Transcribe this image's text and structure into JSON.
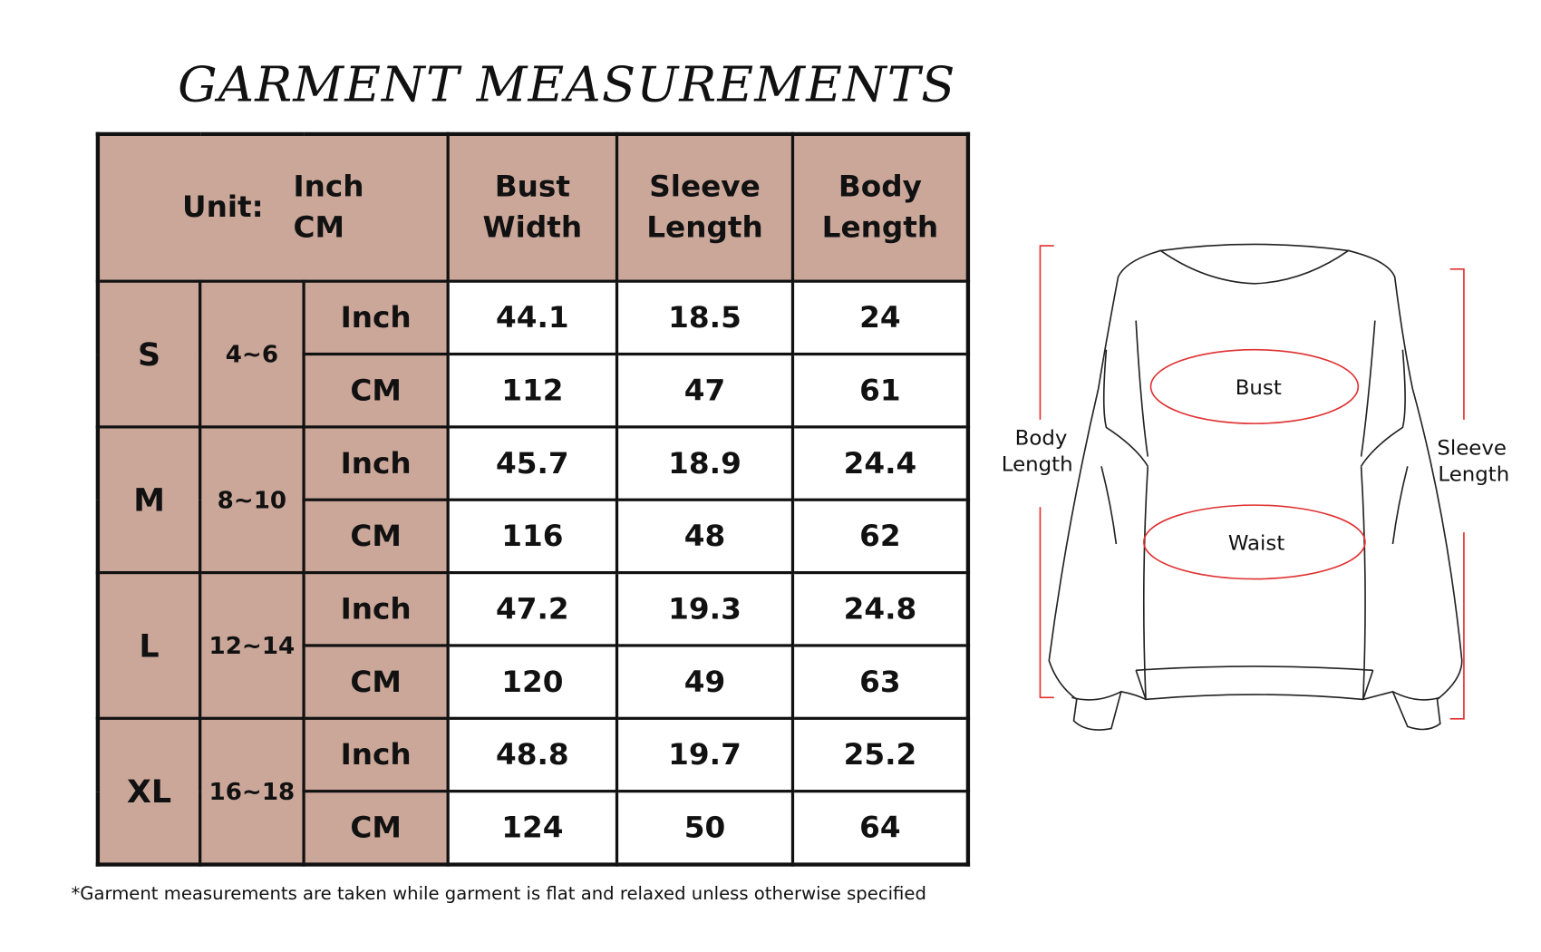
{
  "title": "GARMENT MEASUREMENTS",
  "header": {
    "unit_label": "Unit:",
    "unit_inch": "Inch",
    "unit_cm": "CM",
    "columns": [
      "Bust Width",
      "Sleeve Length",
      "Body Length"
    ]
  },
  "sizes": [
    {
      "size": "S",
      "range": "4~6",
      "inch": [
        "44.1",
        "18.5",
        "24"
      ],
      "cm": [
        "112",
        "47",
        "61"
      ]
    },
    {
      "size": "M",
      "range": "8~10",
      "inch": [
        "45.7",
        "18.9",
        "24.4"
      ],
      "cm": [
        "116",
        "48",
        "62"
      ]
    },
    {
      "size": "L",
      "range": "12~14",
      "inch": [
        "47.2",
        "19.3",
        "24.8"
      ],
      "cm": [
        "120",
        "49",
        "63"
      ]
    },
    {
      "size": "XL",
      "range": "16~18",
      "inch": [
        "48.8",
        "19.7",
        "25.2"
      ],
      "cm": [
        "124",
        "50",
        "64"
      ]
    }
  ],
  "row_units": {
    "inch": "Inch",
    "cm": "CM"
  },
  "footnote": "*Garment measurements are taken while garment is flat and relaxed unless otherwise specified",
  "diagram": {
    "bust": "Bust",
    "waist": "Waist",
    "body_length": [
      "Body",
      "Length"
    ],
    "sleeve_length": [
      "Sleeve",
      "Length"
    ]
  },
  "colors": {
    "header_bg": "#cba79a",
    "measure_line": "#e03030"
  }
}
